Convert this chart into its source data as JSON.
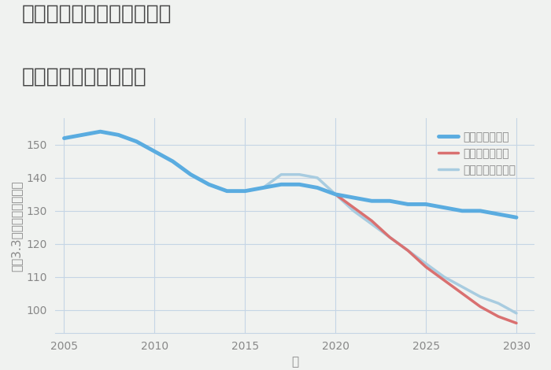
{
  "title_line1": "神奈川県茅ヶ崎市常盤町の",
  "title_line2": "中古戸建ての価格推移",
  "xlabel": "年",
  "ylabel": "坪（3.3㎡）単価（万円）",
  "ylim": [
    93,
    158
  ],
  "xlim": [
    2004.5,
    2031
  ],
  "yticks": [
    100,
    110,
    120,
    130,
    140,
    150
  ],
  "xticks": [
    2005,
    2010,
    2015,
    2020,
    2025,
    2030
  ],
  "background_color": "#f0f2f0",
  "plot_background_color": "#f0f2f0",
  "grid_color": "#c5d5e5",
  "good_scenario": {
    "label": "グッドシナリオ",
    "color": "#5aace0",
    "linewidth": 3.5,
    "x": [
      2005,
      2006,
      2007,
      2008,
      2009,
      2010,
      2011,
      2012,
      2013,
      2014,
      2015,
      2016,
      2017,
      2018,
      2019,
      2020,
      2021,
      2022,
      2023,
      2024,
      2025,
      2026,
      2027,
      2028,
      2029,
      2030
    ],
    "y": [
      152,
      153,
      154,
      153,
      151,
      148,
      145,
      141,
      138,
      136,
      136,
      137,
      138,
      138,
      137,
      135,
      134,
      133,
      133,
      132,
      132,
      131,
      130,
      130,
      129,
      128
    ]
  },
  "bad_scenario": {
    "label": "バッドシナリオ",
    "color": "#d97070",
    "linewidth": 2.5,
    "x": [
      2020,
      2021,
      2022,
      2023,
      2024,
      2025,
      2026,
      2027,
      2028,
      2029,
      2030
    ],
    "y": [
      135,
      131,
      127,
      122,
      118,
      113,
      109,
      105,
      101,
      98,
      96
    ]
  },
  "normal_scenario": {
    "label": "ノーマルシナリオ",
    "color": "#a8cce0",
    "linewidth": 2.5,
    "x": [
      2005,
      2006,
      2007,
      2008,
      2009,
      2010,
      2011,
      2012,
      2013,
      2014,
      2015,
      2016,
      2017,
      2018,
      2019,
      2020,
      2021,
      2022,
      2023,
      2024,
      2025,
      2026,
      2027,
      2028,
      2029,
      2030
    ],
    "y": [
      152,
      153,
      154,
      153,
      151,
      148,
      145,
      141,
      138,
      136,
      136,
      137,
      141,
      141,
      140,
      135,
      130,
      126,
      122,
      118,
      114,
      110,
      107,
      104,
      102,
      99
    ]
  },
  "title_fontsize": 19,
  "axis_label_fontsize": 11,
  "tick_fontsize": 10,
  "legend_fontsize": 10,
  "title_color": "#444444",
  "axis_color": "#888888",
  "tick_color": "#888888"
}
